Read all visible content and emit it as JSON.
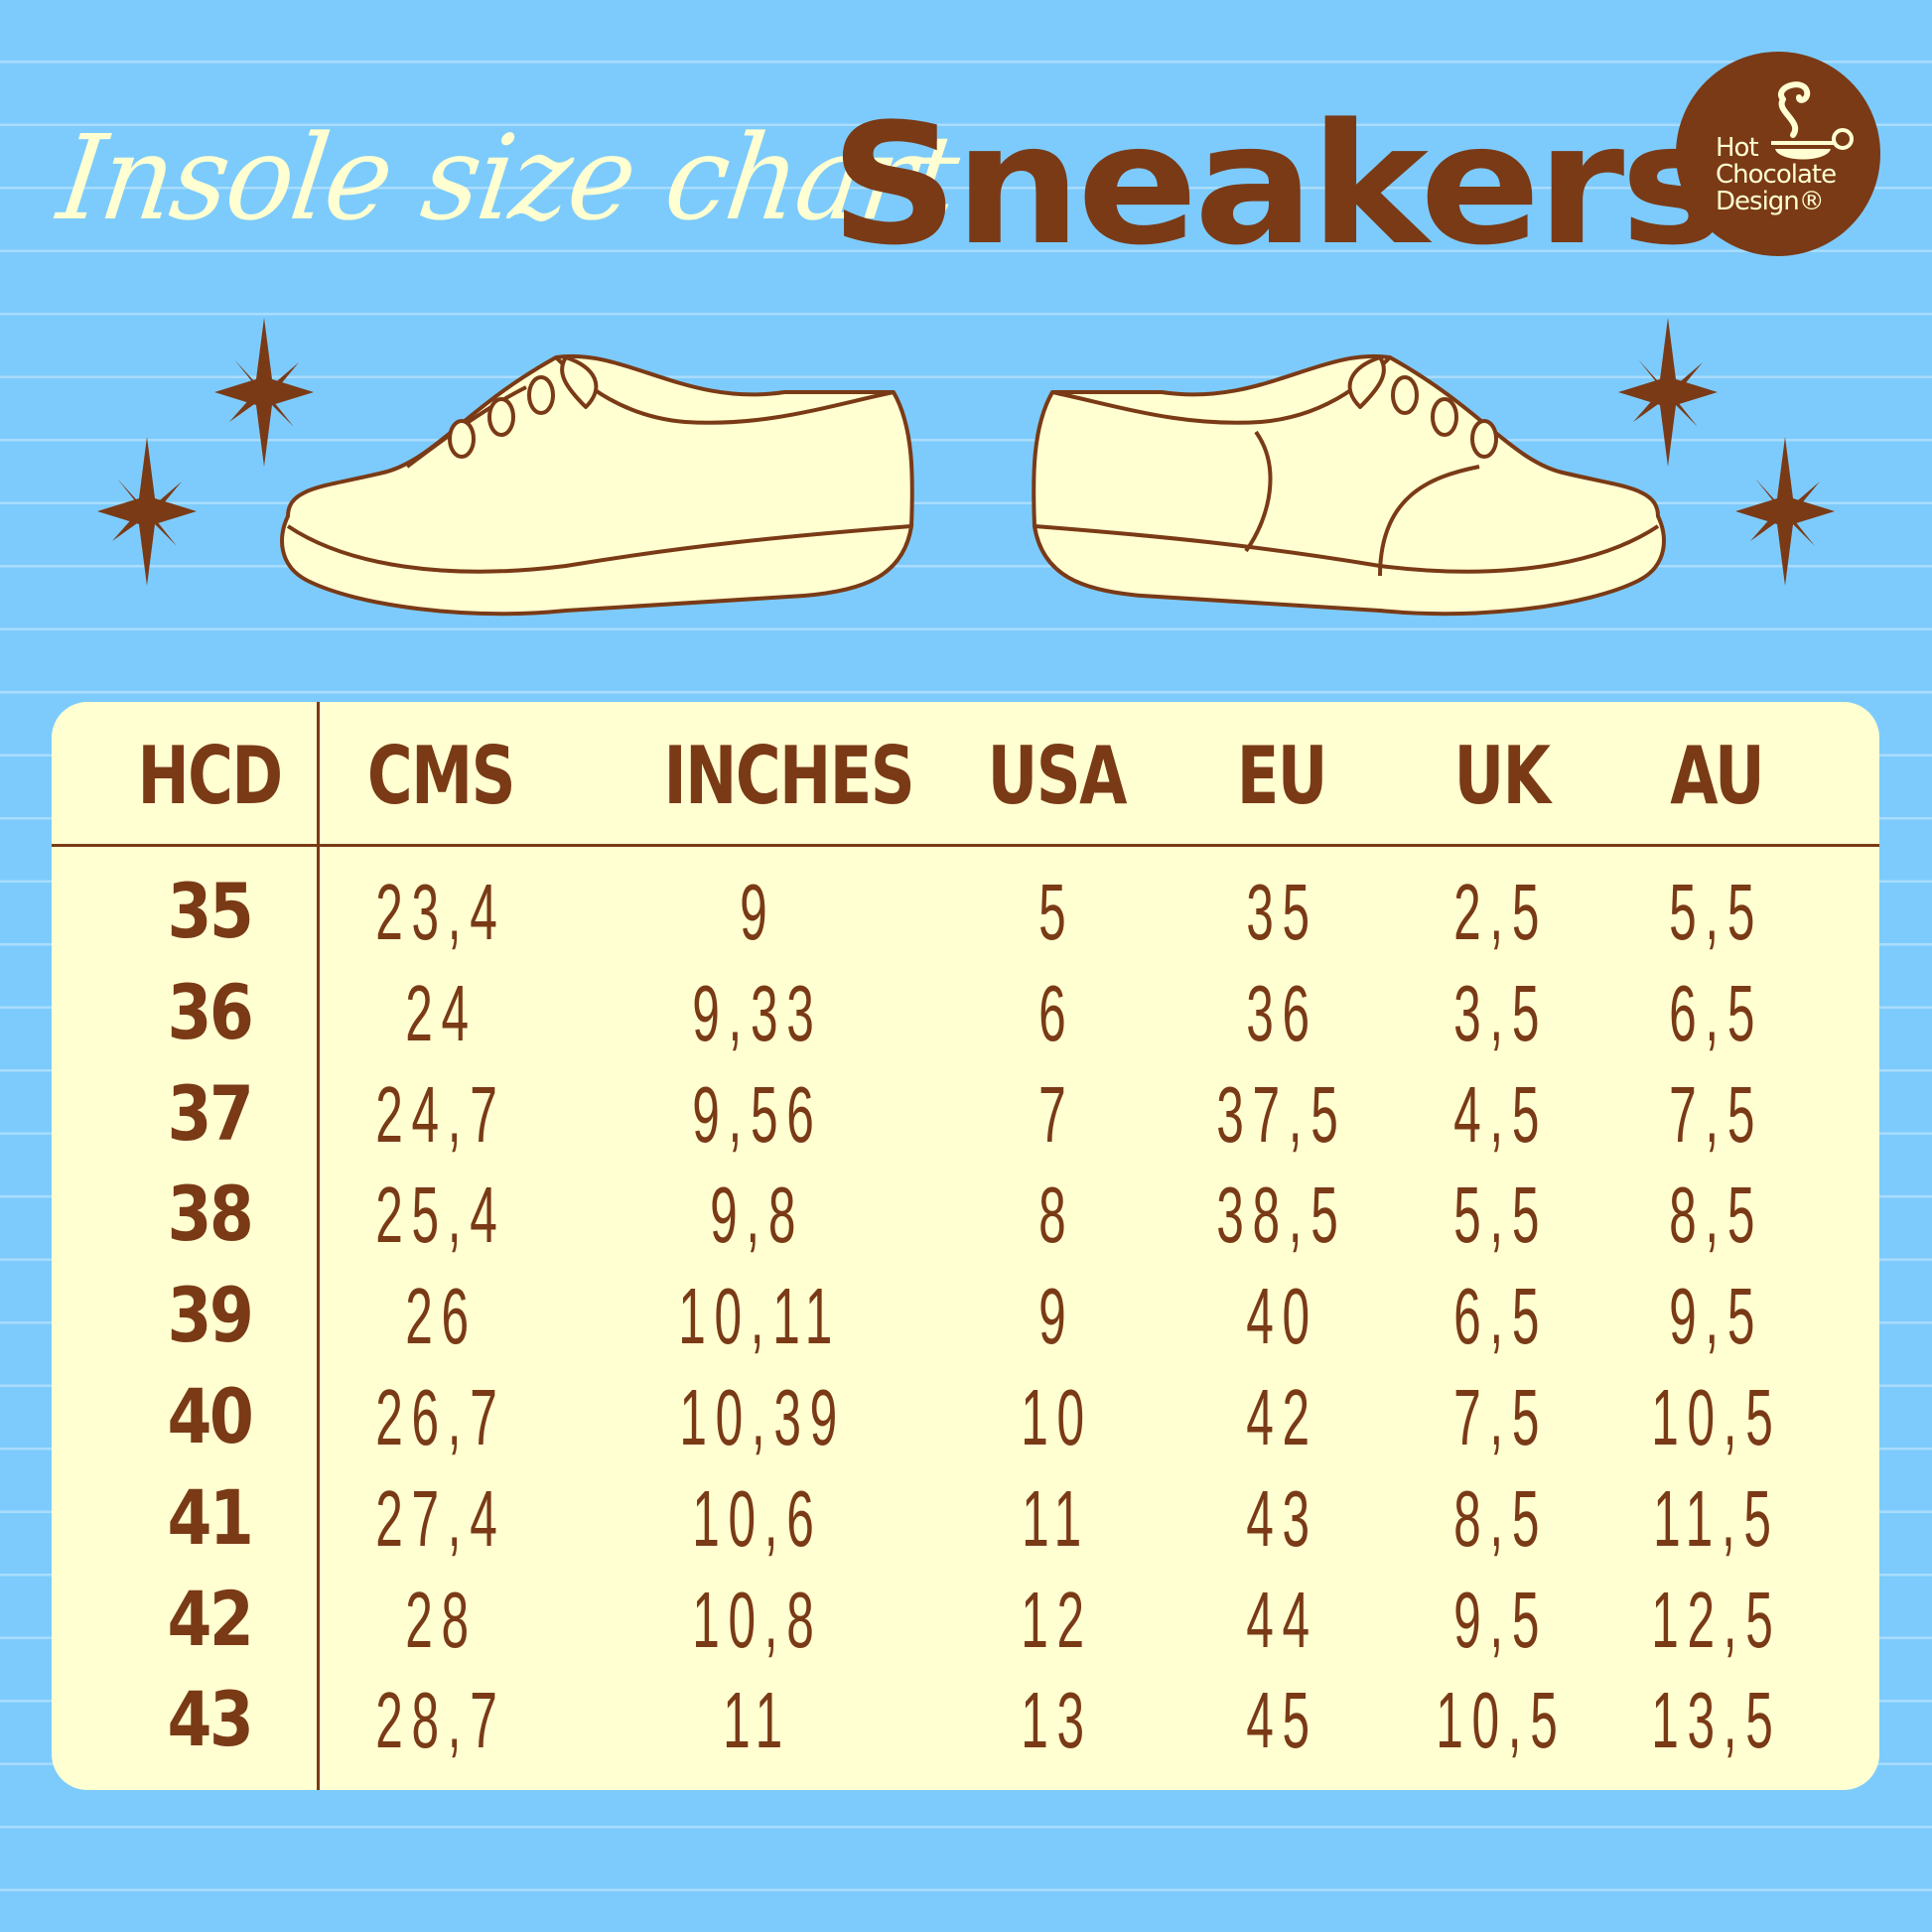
{
  "header": {
    "script_title": "Insole size chart",
    "main_title": "Sneakers"
  },
  "logo": {
    "line1": "Hot",
    "line2": "Chocolate",
    "line3": "Design®",
    "icon": "steaming-cup-icon"
  },
  "colors": {
    "background": "#7dcbfc",
    "brown": "#7a3a16",
    "cream": "#ffffd2"
  },
  "table": {
    "columns": [
      "HCD",
      "CMS",
      "INCHES",
      "USA",
      "EU",
      "UK",
      "AU"
    ],
    "rows": [
      [
        "35",
        "23,4",
        "9",
        "5",
        "35",
        "2,5",
        "5,5"
      ],
      [
        "36",
        "24",
        "9,33",
        "6",
        "36",
        "3,5",
        "6,5"
      ],
      [
        "37",
        "24,7",
        "9,56",
        "7",
        "37,5",
        "4,5",
        "7,5"
      ],
      [
        "38",
        "25,4",
        "9,8",
        "8",
        "38,5",
        "5,5",
        "8,5"
      ],
      [
        "39",
        "26",
        "10,11",
        "9",
        "40",
        "6,5",
        "9,5"
      ],
      [
        "40",
        "26,7",
        "10,39",
        "10",
        "42",
        "7,5",
        "10,5"
      ],
      [
        "41",
        "27,4",
        "10,6",
        "11",
        "43",
        "8,5",
        "11,5"
      ],
      [
        "42",
        "28",
        "10,8",
        "12",
        "44",
        "9,5",
        "12,5"
      ],
      [
        "43",
        "28,7",
        "11",
        "13",
        "45",
        "10,5",
        "13,5"
      ]
    ]
  }
}
